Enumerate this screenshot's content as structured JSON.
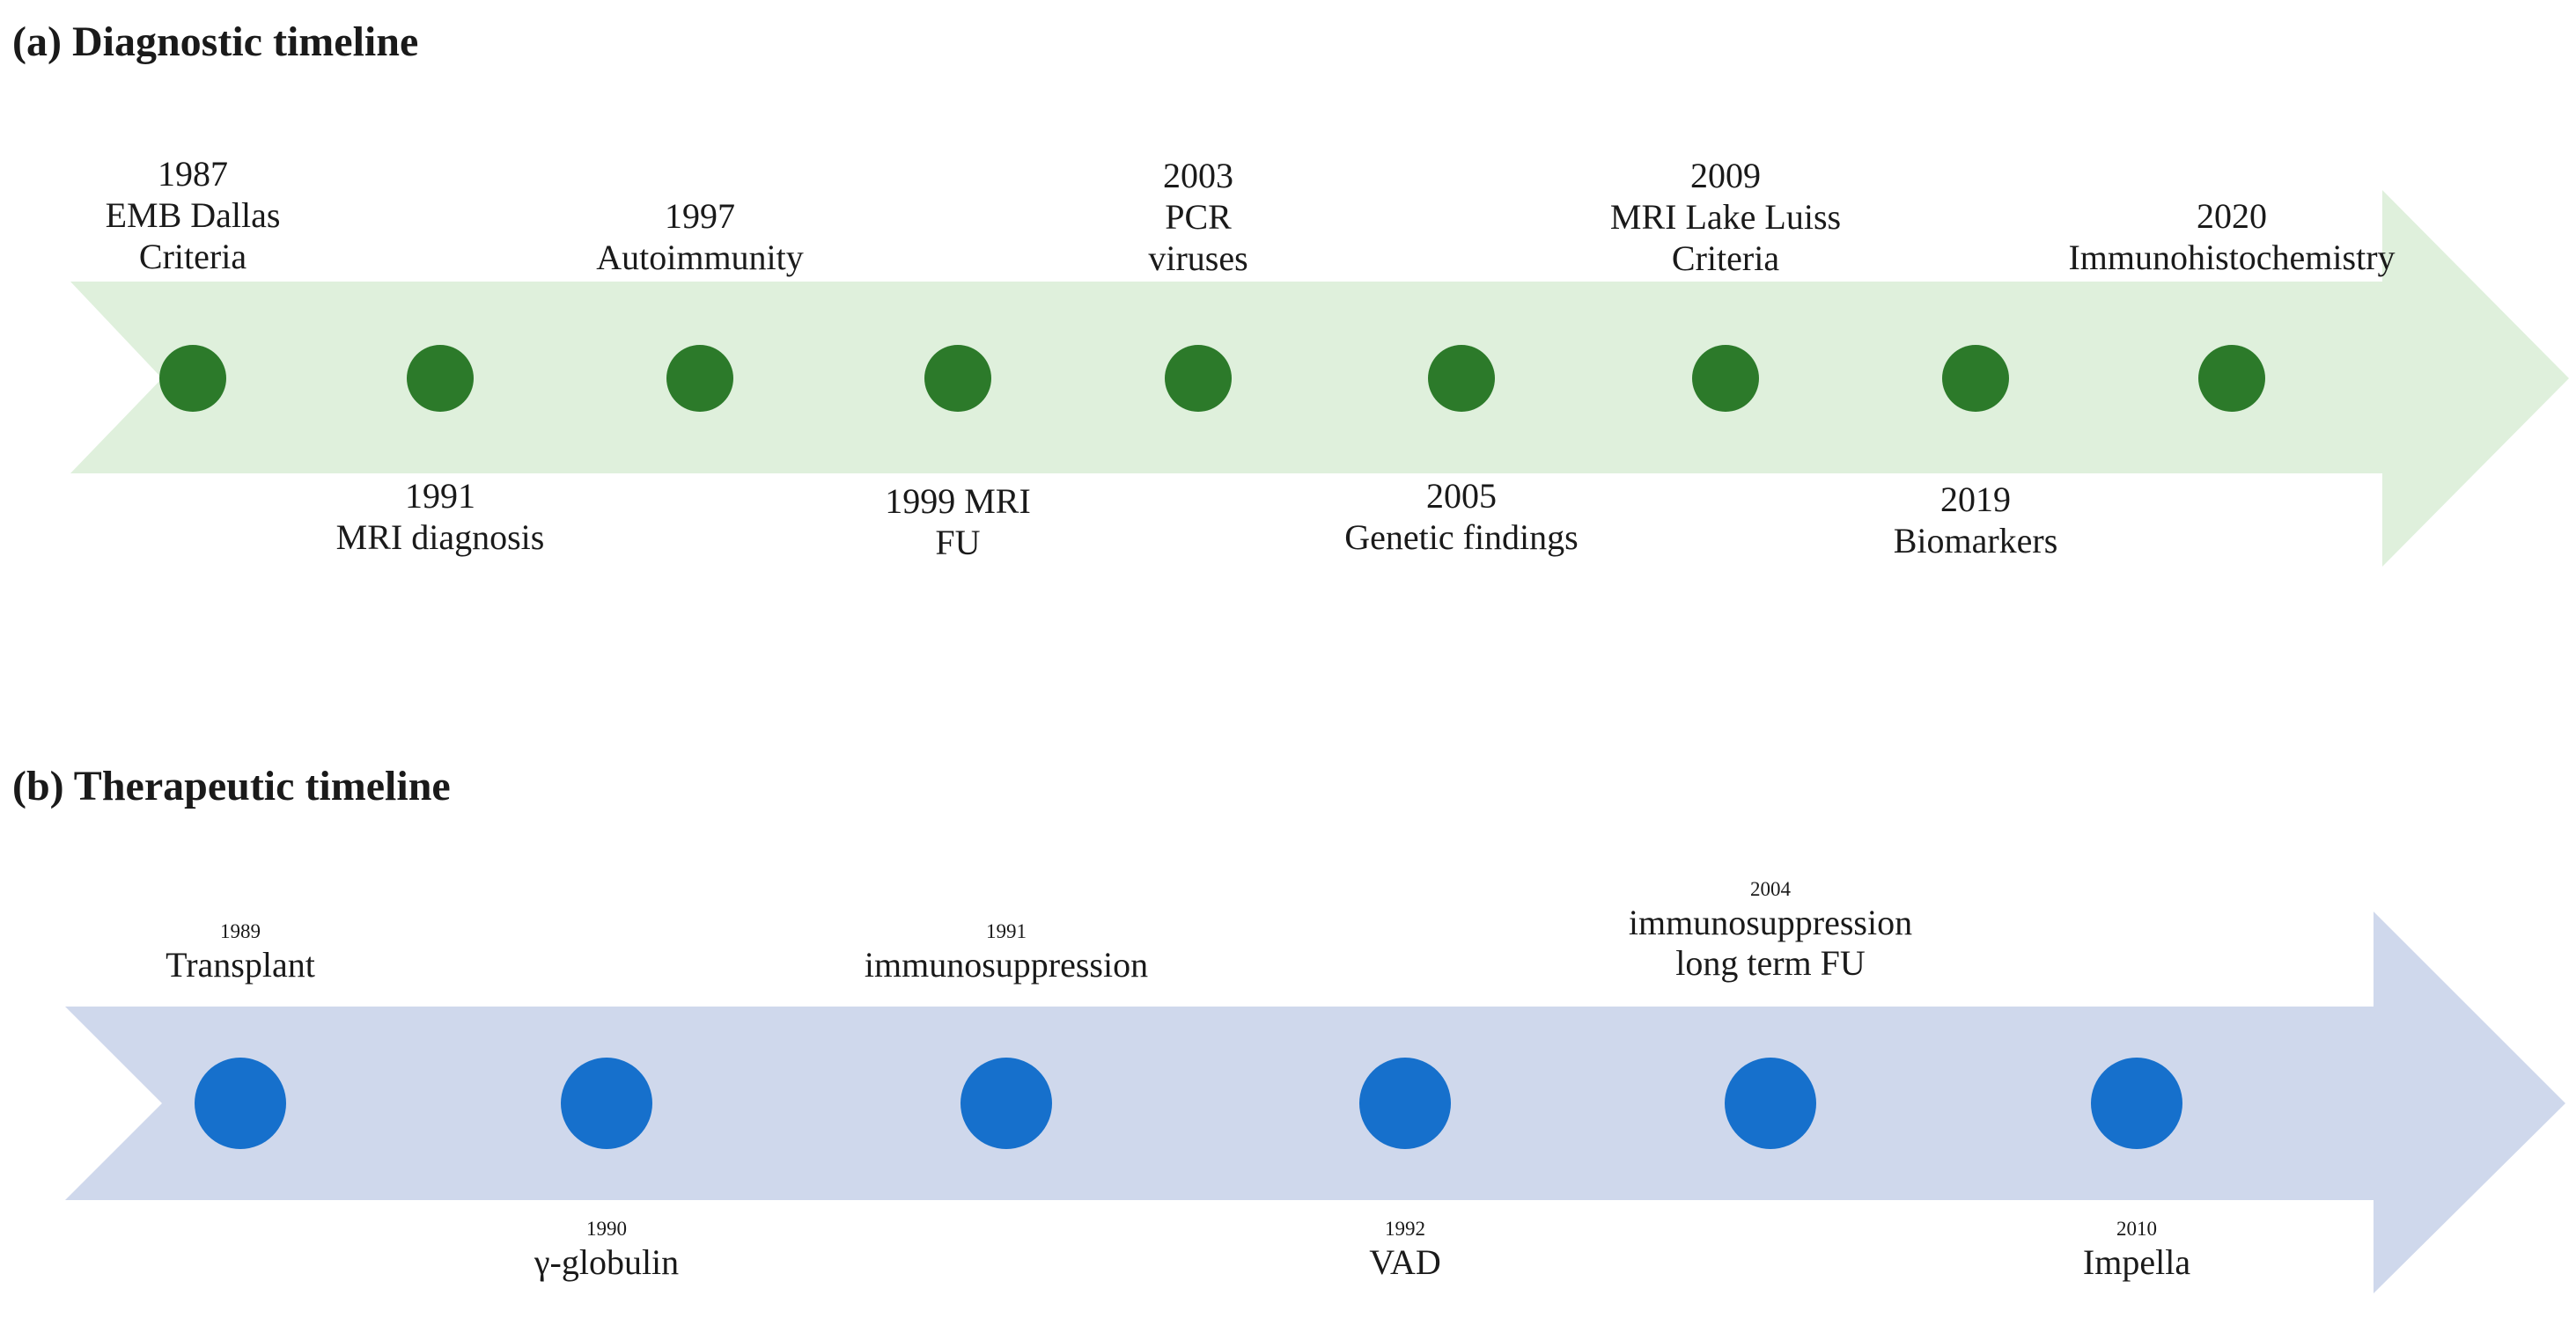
{
  "colors": {
    "diagnostic_arrow": "#dff0dc",
    "diagnostic_dot": "#2c7a2a",
    "therapeutic_arrow": "#cfd8ec",
    "therapeutic_dot": "#1670cc"
  },
  "diagnostic": {
    "title": "(a) Diagnostic timeline",
    "events": [
      {
        "year": "1987",
        "lines": [
          "EMB Dallas",
          "Criteria"
        ]
      },
      {
        "year": "1991",
        "lines": [
          "MRI diagnosis"
        ]
      },
      {
        "year": "1997",
        "lines": [
          "Autoimmunity"
        ]
      },
      {
        "year": "1999 MRI",
        "lines": [
          "FU"
        ]
      },
      {
        "year": "2003",
        "lines": [
          "PCR",
          "viruses"
        ]
      },
      {
        "year": "2005",
        "lines": [
          "Genetic findings"
        ]
      },
      {
        "year": "2009",
        "lines": [
          "MRI Lake Luiss",
          "Criteria"
        ]
      },
      {
        "year": "2019",
        "lines": [
          "Biomarkers"
        ]
      },
      {
        "year": "2020",
        "lines": [
          "Immunohistochemistry"
        ]
      }
    ]
  },
  "therapeutic": {
    "title": "(b) Therapeutic timeline",
    "events": [
      {
        "year": "1989",
        "lines": [
          "Transplant"
        ]
      },
      {
        "year": "1990",
        "lines": [
          "γ-globulin"
        ]
      },
      {
        "year": "1991",
        "lines": [
          "immunosuppression"
        ]
      },
      {
        "year": "1992",
        "lines": [
          "VAD"
        ]
      },
      {
        "year": "2004",
        "lines": [
          "immunosuppression",
          "long term FU"
        ]
      },
      {
        "year": "2010",
        "lines": [
          "Impella"
        ]
      }
    ]
  }
}
